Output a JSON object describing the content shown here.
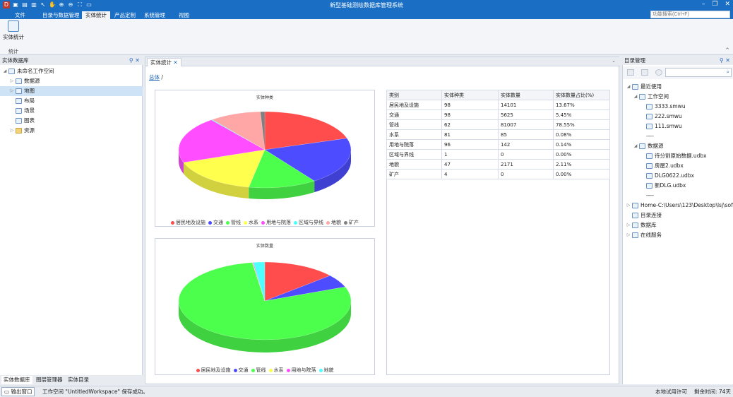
{
  "app": {
    "title": "新型基础测绘数据库管理系统",
    "window_controls": [
      "–",
      "❐",
      "✕"
    ]
  },
  "menu": {
    "items": [
      {
        "label": "文件",
        "active": false
      },
      {
        "label": "目录与数据管理",
        "active": false
      },
      {
        "label": "实体统计",
        "active": true
      },
      {
        "label": "产品定制",
        "active": false
      },
      {
        "label": "系统管理",
        "active": false
      },
      {
        "label": "视图",
        "active": false
      }
    ],
    "search_placeholder": "功能搜索(Ctrl+F)"
  },
  "ribbon": {
    "button_label": "实体统计",
    "group_label": "统计",
    "collapse": "^"
  },
  "left_panel": {
    "title": "实体数据库",
    "controls": [
      "⚲",
      "✕"
    ],
    "tree": [
      {
        "label": "未命名工作空间",
        "level": 0,
        "arrow": "◢",
        "selected": false
      },
      {
        "label": "数据源",
        "level": 1,
        "arrow": "▷",
        "selected": false
      },
      {
        "label": "地图",
        "level": 1,
        "arrow": "▷",
        "selected": true
      },
      {
        "label": "布局",
        "level": 1,
        "arrow": "",
        "selected": false
      },
      {
        "label": "场景",
        "level": 1,
        "arrow": "",
        "selected": false
      },
      {
        "label": "图表",
        "level": 1,
        "arrow": "",
        "selected": false
      },
      {
        "label": "资源",
        "level": 1,
        "arrow": "▷",
        "selected": false
      }
    ],
    "tabs": [
      "实体数据库",
      "图层管理器",
      "实体目录"
    ]
  },
  "center": {
    "tab_label": "实体统计",
    "tab_close": "✕",
    "dropdown": "⌄",
    "breadcrumb_link": "总体",
    "breadcrumb_sep": "/"
  },
  "chart_data": [
    {
      "type": "pie",
      "title": "实体种类",
      "categories": [
        "居民地及设施",
        "交通",
        "管线",
        "水系",
        "用地与院落",
        "区域与界线",
        "地貌",
        "矿产"
      ],
      "values": [
        98,
        98,
        62,
        81,
        96,
        1,
        47,
        4
      ],
      "colors": [
        "#ff4d4d",
        "#4d4dff",
        "#4dff4d",
        "#ffff4d",
        "#ff4dff",
        "#4dffff",
        "#ffa6a6",
        "#808080"
      ],
      "legend_position": "bottom"
    },
    {
      "type": "pie",
      "title": "实体数量",
      "categories": [
        "居民地及设施",
        "交通",
        "管线",
        "水系",
        "用地与院落",
        "地貌"
      ],
      "values": [
        14101,
        5625,
        81007,
        85,
        142,
        2171
      ],
      "colors": [
        "#ff4d4d",
        "#4d4dff",
        "#4dff4d",
        "#ffff4d",
        "#ff4dff",
        "#4dffff"
      ],
      "legend_position": "bottom"
    },
    {
      "type": "table",
      "columns": [
        "类别",
        "实体种类",
        "实体数量",
        "实体数量占比(%)"
      ],
      "rows": [
        [
          "居民地及设施",
          "98",
          "14101",
          "13.67%"
        ],
        [
          "交通",
          "98",
          "5625",
          "5.45%"
        ],
        [
          "管线",
          "62",
          "81007",
          "78.55%"
        ],
        [
          "水系",
          "81",
          "85",
          "0.08%"
        ],
        [
          "用地与院落",
          "96",
          "142",
          "0.14%"
        ],
        [
          "区域与界线",
          "1",
          "0",
          "0.00%"
        ],
        [
          "地貌",
          "47",
          "2171",
          "2.11%"
        ],
        [
          "矿产",
          "4",
          "0",
          "0.00%"
        ]
      ]
    }
  ],
  "right_panel": {
    "title": "目录管理",
    "controls": [
      "⚲",
      "✕"
    ],
    "search_icon": "⌕",
    "tree": [
      {
        "label": "最近使用",
        "level": 0,
        "arrow": "◢",
        "icon": "clock-icon"
      },
      {
        "label": "工作空间",
        "level": 1,
        "arrow": "◢",
        "icon": "workspace-icon"
      },
      {
        "label": "3333.smwu",
        "level": 2,
        "arrow": "",
        "icon": "file-icon"
      },
      {
        "label": "222.smwu",
        "level": 2,
        "arrow": "",
        "icon": "file-icon"
      },
      {
        "label": "111.smwu",
        "level": 2,
        "arrow": "",
        "icon": "file-icon"
      },
      {
        "label": "----",
        "level": 2,
        "arrow": "",
        "icon": ""
      },
      {
        "label": "数据源",
        "level": 1,
        "arrow": "◢",
        "icon": "datasource-icon"
      },
      {
        "label": "待分割原始数据.udbx",
        "level": 2,
        "arrow": "",
        "icon": "db-icon"
      },
      {
        "label": "房屋2.udbx",
        "level": 2,
        "arrow": "",
        "icon": "db-icon"
      },
      {
        "label": "DLG0622.udbx",
        "level": 2,
        "arrow": "",
        "icon": "db-icon"
      },
      {
        "label": "新DLG.udbx",
        "level": 2,
        "arrow": "",
        "icon": "db-icon"
      },
      {
        "label": "----",
        "level": 2,
        "arrow": "",
        "icon": ""
      },
      {
        "label": "Home-C:\\Users\\123\\Desktop\\lsj\\softw...",
        "level": 0,
        "arrow": "▷",
        "icon": "home-icon"
      },
      {
        "label": "目录连接",
        "level": 0,
        "arrow": "",
        "icon": "link-icon"
      },
      {
        "label": "数据库",
        "level": 0,
        "arrow": "▷",
        "icon": "database-icon"
      },
      {
        "label": "在线服务",
        "level": 0,
        "arrow": "▷",
        "icon": "globe-icon"
      }
    ]
  },
  "status": {
    "output_button": "输出窗口",
    "message": "工作空间 \"UntitledWorkspace\" 保存成功。",
    "license": "本地试用许可",
    "remaining": "剩余时间: 74天"
  }
}
